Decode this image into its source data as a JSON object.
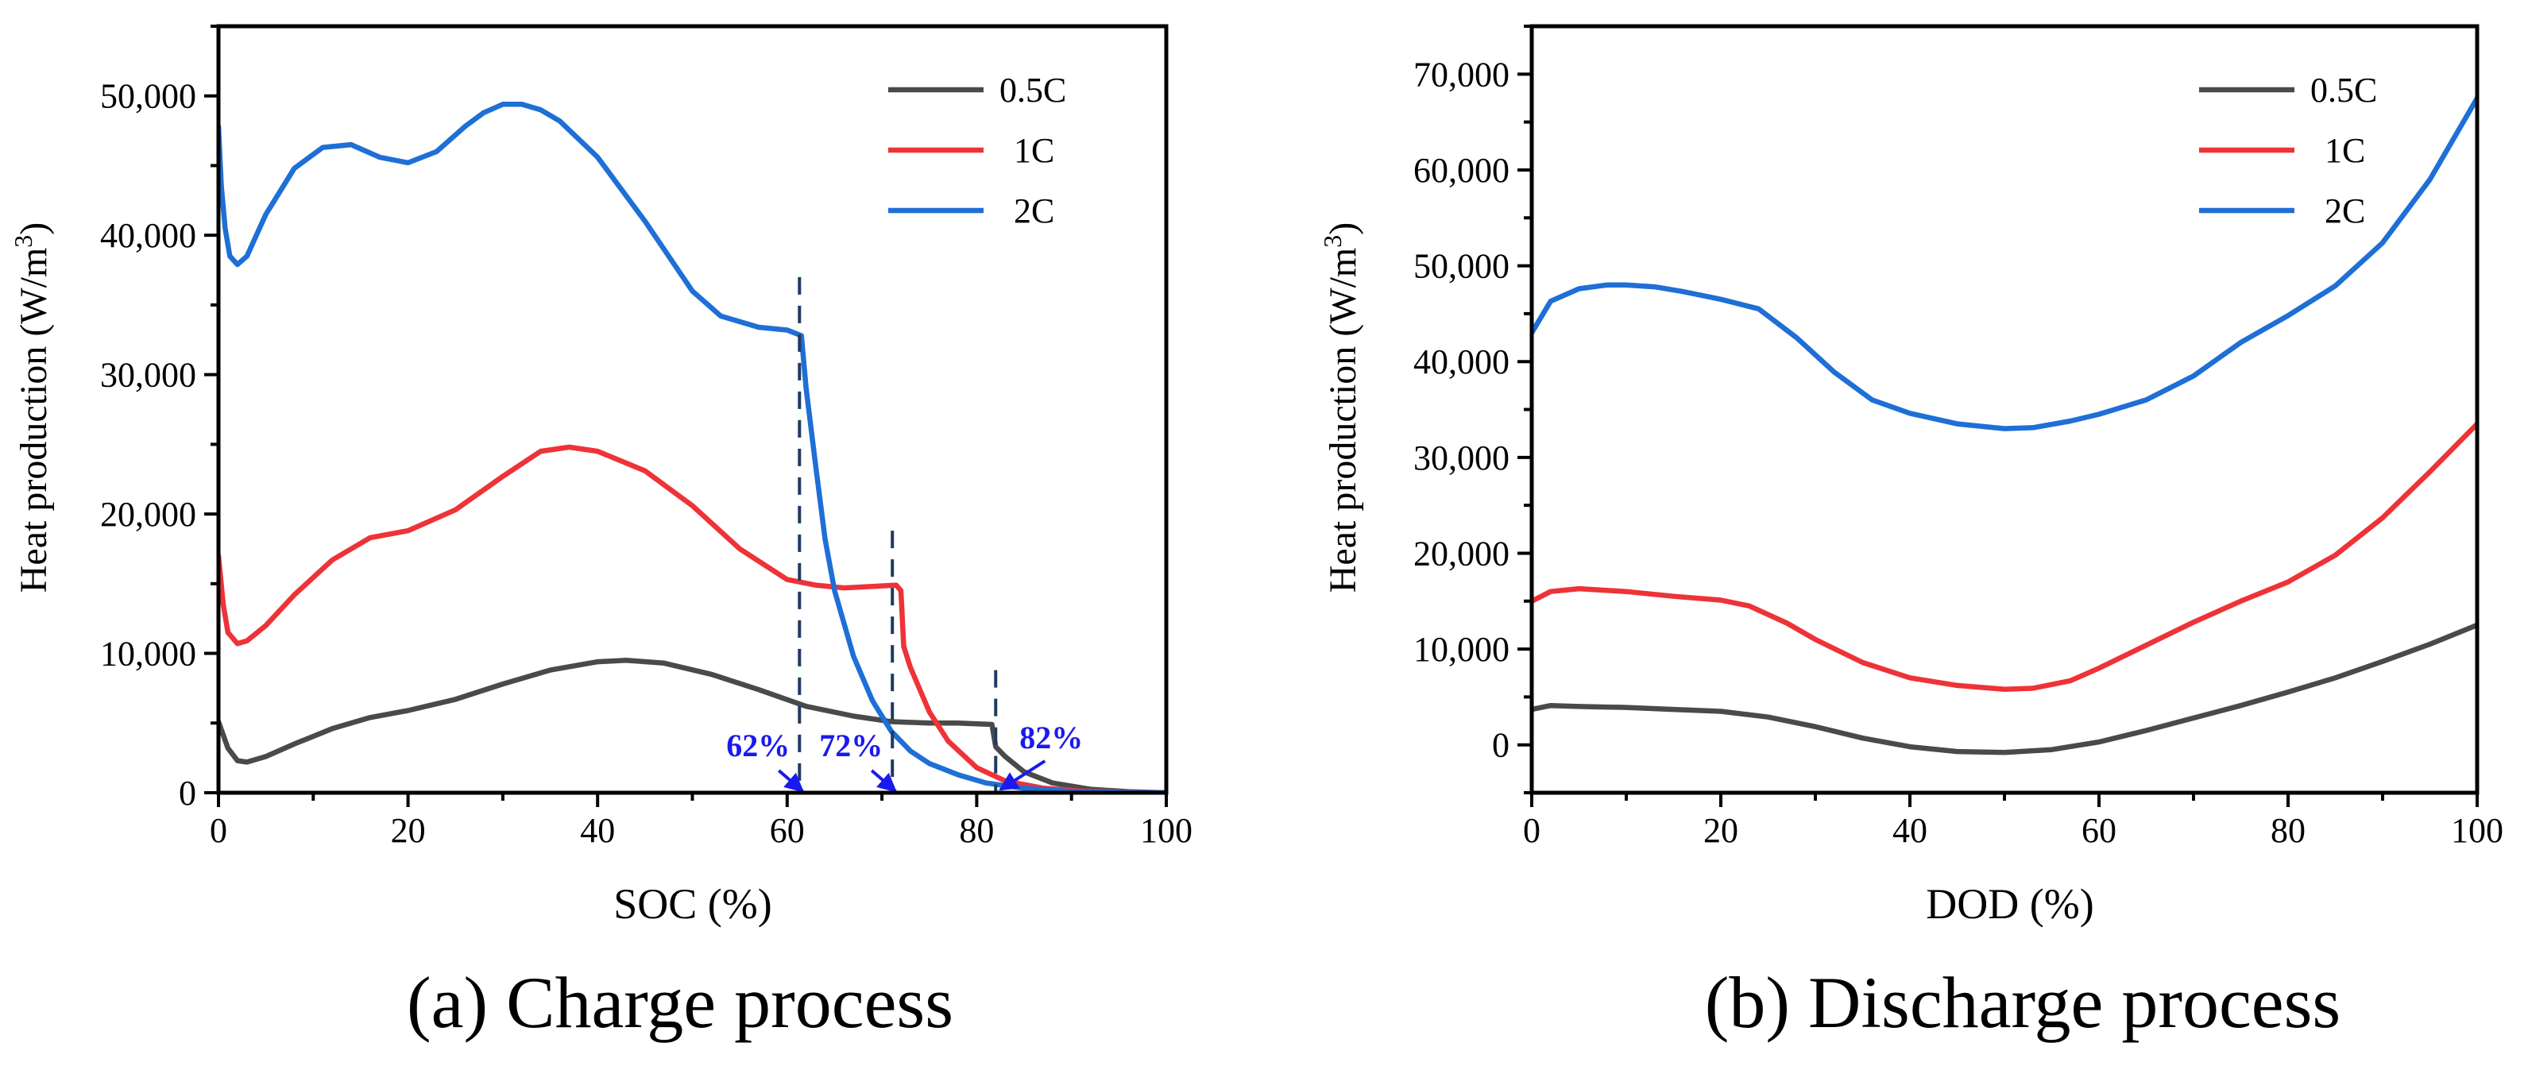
{
  "chart_data": [
    {
      "type": "line",
      "caption": "(a) Charge process",
      "xlabel": "SOC (%)",
      "ylabel_main": "Heat production (W/m",
      "ylabel_sup": "3",
      "ylabel_end": ")",
      "xlim": [
        0,
        100
      ],
      "ylim": [
        0,
        55000
      ],
      "xticks": [
        0,
        20,
        40,
        60,
        80,
        100
      ],
      "xtick_labels": [
        "0",
        "20",
        "40",
        "60",
        "80",
        "100"
      ],
      "yticks": [
        0,
        10000,
        20000,
        30000,
        40000,
        50000
      ],
      "ytick_labels": [
        "0",
        "10,000",
        "20,000",
        "30,000",
        "40,000",
        "50,000"
      ],
      "legend_position": "top-right",
      "grid": false,
      "series": [
        {
          "name": "0.5C",
          "color": "#4a4a4a",
          "x": [
            0,
            1,
            2,
            3,
            5,
            8,
            12,
            16,
            20,
            25,
            30,
            35,
            40,
            43,
            47,
            52,
            57,
            62,
            67,
            71,
            75,
            78,
            81.6,
            82,
            83,
            85,
            88,
            92,
            96,
            100
          ],
          "y": [
            5100,
            3200,
            2300,
            2200,
            2600,
            3500,
            4600,
            5400,
            5900,
            6700,
            7800,
            8800,
            9400,
            9500,
            9300,
            8500,
            7400,
            6200,
            5500,
            5100,
            5000,
            5000,
            4900,
            3300,
            2600,
            1500,
            700,
            250,
            80,
            0
          ]
        },
        {
          "name": "1C",
          "color": "#ee3338",
          "x": [
            0,
            0.5,
            1,
            2,
            3,
            5,
            8,
            12,
            16,
            20,
            25,
            30,
            34,
            37,
            40,
            45,
            50,
            55,
            60,
            63,
            66,
            69,
            71.5,
            72,
            72.3,
            73,
            75,
            77,
            80,
            83,
            87,
            91,
            95,
            100
          ],
          "y": [
            17000,
            13500,
            11500,
            10700,
            10900,
            12000,
            14200,
            16700,
            18300,
            18800,
            20300,
            22700,
            24500,
            24800,
            24500,
            23100,
            20600,
            17500,
            15300,
            14900,
            14700,
            14800,
            14900,
            14500,
            10500,
            9000,
            5800,
            3700,
            1800,
            850,
            330,
            130,
            40,
            0
          ]
        },
        {
          "name": "2C",
          "color": "#1e6fd6",
          "x": [
            0,
            0.3,
            0.7,
            1.2,
            2,
            3,
            5,
            8,
            11,
            14,
            17,
            20,
            23,
            26,
            28,
            30,
            32,
            34,
            36,
            40,
            45,
            50,
            53,
            57,
            60,
            61.5,
            62,
            63,
            64,
            65,
            67,
            69,
            71,
            73,
            75,
            78,
            81,
            85,
            90,
            95,
            100
          ],
          "y": [
            47800,
            43500,
            40500,
            38500,
            37900,
            38500,
            41500,
            44800,
            46300,
            46500,
            45600,
            45200,
            46000,
            47800,
            48800,
            49400,
            49400,
            49000,
            48200,
            45600,
            41000,
            36000,
            34200,
            33400,
            33200,
            32800,
            29000,
            23500,
            18200,
            14500,
            9800,
            6600,
            4400,
            3000,
            2100,
            1300,
            700,
            320,
            90,
            20,
            0
          ]
        }
      ],
      "markers": [
        {
          "label": "62%",
          "x": 61.3,
          "y_top": 37000
        },
        {
          "label": "72%",
          "x": 71.1,
          "y_top": 18800
        },
        {
          "label": "82%",
          "x": 82.0,
          "y_top": 8800
        }
      ],
      "annotation_color": "#1a1aee"
    },
    {
      "type": "line",
      "caption": "(b) Discharge process",
      "xlabel": "DOD (%)",
      "ylabel_main": "Heat production (W/m",
      "ylabel_sup": "3",
      "ylabel_end": ")",
      "xlim": [
        0,
        100
      ],
      "ylim": [
        -5000,
        75000
      ],
      "xticks": [
        0,
        20,
        40,
        60,
        80,
        100
      ],
      "xtick_labels": [
        "0",
        "20",
        "40",
        "60",
        "80",
        "100"
      ],
      "yticks": [
        0,
        10000,
        20000,
        30000,
        40000,
        50000,
        60000,
        70000
      ],
      "ytick_labels": [
        "0",
        "10,000",
        "20,000",
        "30,000",
        "40,000",
        "50,000",
        "60,000",
        "70,000"
      ],
      "legend_position": "top-right",
      "grid": false,
      "series": [
        {
          "name": "0.5C",
          "color": "#4a4a4a",
          "x": [
            0,
            2,
            5,
            10,
            15,
            20,
            25,
            30,
            35,
            40,
            45,
            50,
            55,
            60,
            65,
            70,
            75,
            80,
            85,
            90,
            95,
            100
          ],
          "y": [
            3700,
            4100,
            4000,
            3900,
            3700,
            3500,
            2900,
            1900,
            700,
            -200,
            -700,
            -800,
            -500,
            300,
            1500,
            2800,
            4100,
            5500,
            7000,
            8700,
            10500,
            12500
          ]
        },
        {
          "name": "1C",
          "color": "#ee3338",
          "x": [
            0,
            2,
            5,
            10,
            15,
            20,
            23,
            27,
            30,
            35,
            40,
            45,
            50,
            53,
            57,
            60,
            65,
            70,
            75,
            80,
            85,
            90,
            95,
            100
          ],
          "y": [
            15000,
            16000,
            16300,
            16000,
            15500,
            15100,
            14500,
            12700,
            11000,
            8600,
            7000,
            6200,
            5800,
            5900,
            6700,
            8000,
            10400,
            12800,
            15000,
            17000,
            19800,
            23700,
            28500,
            33500
          ]
        },
        {
          "name": "2C",
          "color": "#1e6fd6",
          "x": [
            0,
            2,
            5,
            8,
            10,
            13,
            16,
            20,
            24,
            28,
            32,
            36,
            40,
            45,
            50,
            53,
            57,
            60,
            65,
            70,
            75,
            80,
            85,
            90,
            95,
            100
          ],
          "y": [
            43000,
            46300,
            47600,
            48000,
            48000,
            47800,
            47300,
            46500,
            45500,
            42500,
            38900,
            36000,
            34600,
            33500,
            33000,
            33100,
            33800,
            34500,
            36000,
            38500,
            42000,
            44800,
            47900,
            52400,
            59000,
            67500
          ]
        }
      ]
    }
  ]
}
